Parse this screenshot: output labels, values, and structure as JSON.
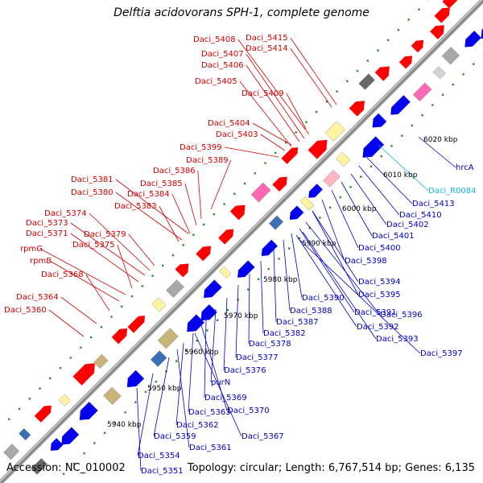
{
  "title": "Delftia acidovorans SPH-1, complete genome",
  "footer": {
    "accession": "Accession: NC_010002",
    "summary": "Topology: circular; Length: 6,767,514 bp; Genes: 6,135"
  },
  "colors": {
    "forward_label": "#d40000",
    "reverse_label": "#0000c8",
    "rna_label": "#10b8d8",
    "backbone": "#8c8c8c"
  },
  "ticks": [
    "5940 kbp",
    "5950 kbp",
    "5960 kbp",
    "5970 kbp",
    "5980 kbp",
    "5990 kbp",
    "6000 kbp",
    "6010 kbp",
    "6020 kbp"
  ],
  "forward_labels": [
    "Daci_5408",
    "Daci_5415",
    "Daci_5407",
    "Daci_5414",
    "Daci_5406",
    "Daci_5405",
    "Daci_5409",
    "Daci_5404",
    "Daci_5403",
    "Daci_5399",
    "Daci_5389",
    "Daci_5386",
    "Daci_5381",
    "Daci_5385",
    "Daci_5380",
    "Daci_5384",
    "Daci_5383",
    "Daci_5374",
    "Daci_5373",
    "Daci_5379",
    "Daci_5371",
    "Daci_5375",
    "rpmG",
    "rpmB",
    "Daci_5368",
    "Daci_5364",
    "Daci_5360"
  ],
  "reverse_labels": [
    "hrcA",
    "Daci_R0084",
    "Daci_5413",
    "Daci_5410",
    "Daci_5402",
    "Daci_5401",
    "Daci_5400",
    "Daci_5398",
    "Daci_5394",
    "Daci_5395",
    "Daci_5390",
    "Daci_5388",
    "Daci_5391",
    "Daci_5396",
    "Daci_5387",
    "Daci_5392",
    "Daci_5382",
    "Daci_5393",
    "Daci_5378",
    "Daci_5397",
    "Daci_5377",
    "Daci_5376",
    "purN",
    "Daci_5369",
    "Daci_5370",
    "Daci_5363",
    "Daci_5362",
    "Daci_5367",
    "Daci_5359",
    "Daci_5361",
    "Daci_5354",
    "Daci_5351"
  ]
}
